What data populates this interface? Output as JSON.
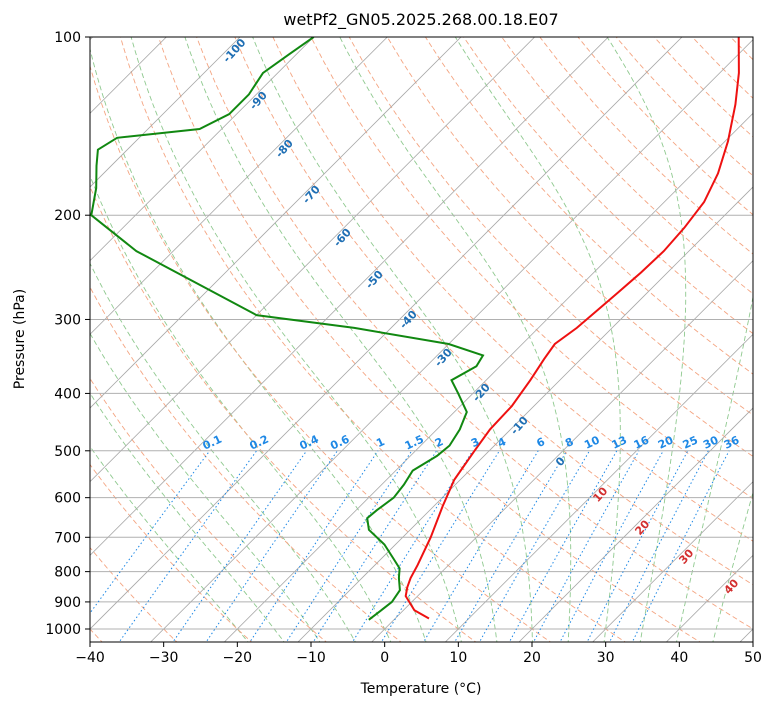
{
  "chart_data": {
    "type": "line",
    "title": "wetPf2_GN05.2025.268.00.18.E07",
    "xlabel": "Temperature (°C)",
    "ylabel": "Pressure (hPa)",
    "xlim": [
      -40,
      50
    ],
    "ylim": [
      1050,
      100
    ],
    "x_ticks": [
      "−40",
      "−30",
      "−20",
      "−10",
      "0",
      "10",
      "20",
      "30",
      "40",
      "50"
    ],
    "x_tick_values": [
      -40,
      -30,
      -20,
      -10,
      0,
      10,
      20,
      30,
      40,
      50
    ],
    "y_ticks": [
      "1000",
      "900",
      "800",
      "700",
      "600",
      "500",
      "400",
      "300",
      "200",
      "100"
    ],
    "y_tick_values": [
      1000,
      900,
      800,
      700,
      600,
      500,
      400,
      300,
      200,
      100
    ],
    "colors": {
      "temperature": "#ee1111",
      "dewpoint": "#118811",
      "grid": "#b0b0b0",
      "isotherm": "#a8a8a8",
      "dry_adiabat": "#f4a582",
      "moist_adiabat": "#8fc98f",
      "mixing_ratio": "#1e88e5"
    },
    "series": [
      {
        "name": "Temperature",
        "pressure": [
          960,
          930,
          880,
          850,
          820,
          780,
          700,
          620,
          560,
          500,
          460,
          420,
          380,
          350,
          330,
          310,
          290,
          270,
          250,
          230,
          210,
          190,
          170,
          150,
          130,
          115,
          100
        ],
        "values": [
          4.6,
          1.5,
          -1.6,
          -2.6,
          -3.4,
          -4.2,
          -6.2,
          -8.8,
          -10.8,
          -12.0,
          -12.8,
          -13.0,
          -14.0,
          -15.0,
          -15.6,
          -14.8,
          -14.4,
          -14.0,
          -13.6,
          -13.4,
          -13.8,
          -14.6,
          -16.6,
          -19.6,
          -23.6,
          -27.4,
          -32.3
        ]
      },
      {
        "name": "Dewpoint",
        "pressure": [
          965,
          930,
          900,
          860,
          820,
          790,
          760,
          720,
          680,
          650,
          630,
          600,
          570,
          540,
          510,
          490,
          460,
          430,
          400,
          380,
          360,
          345,
          330,
          310,
          295,
          230,
          200,
          180,
          165,
          155,
          148,
          143,
          135,
          125,
          115,
          107,
          100
        ],
        "values": [
          -3.4,
          -3.0,
          -2.7,
          -3.2,
          -5.0,
          -6.2,
          -8.4,
          -11.5,
          -15.6,
          -17.4,
          -17.2,
          -16.6,
          -17.0,
          -17.7,
          -16.4,
          -16.1,
          -16.9,
          -18.3,
          -22.0,
          -24.7,
          -23.2,
          -23.8,
          -30.0,
          -45.0,
          -60.0,
          -85.0,
          -96.0,
          -99.0,
          -102.0,
          -104.0,
          -103.0,
          -93.0,
          -91.0,
          -91.0,
          -92.0,
          -91.0,
          -90.0
        ]
      }
    ],
    "dry_adiabat_labels": [
      "-100",
      "-90",
      "-80",
      "-70",
      "-60",
      "-50",
      "-40",
      "-30",
      "-20",
      "-10",
      "0",
      "10",
      "20",
      "30",
      "40"
    ],
    "mixing_ratio_labels": [
      "0.1",
      "0.2",
      "0.4",
      "0.6",
      "1",
      "1.5",
      "2",
      "3",
      "4",
      "6",
      "8",
      "10",
      "13",
      "16",
      "20",
      "25",
      "30",
      "36"
    ],
    "moist_adiabat_labels": [
      "10",
      "20",
      "30",
      "40"
    ]
  }
}
